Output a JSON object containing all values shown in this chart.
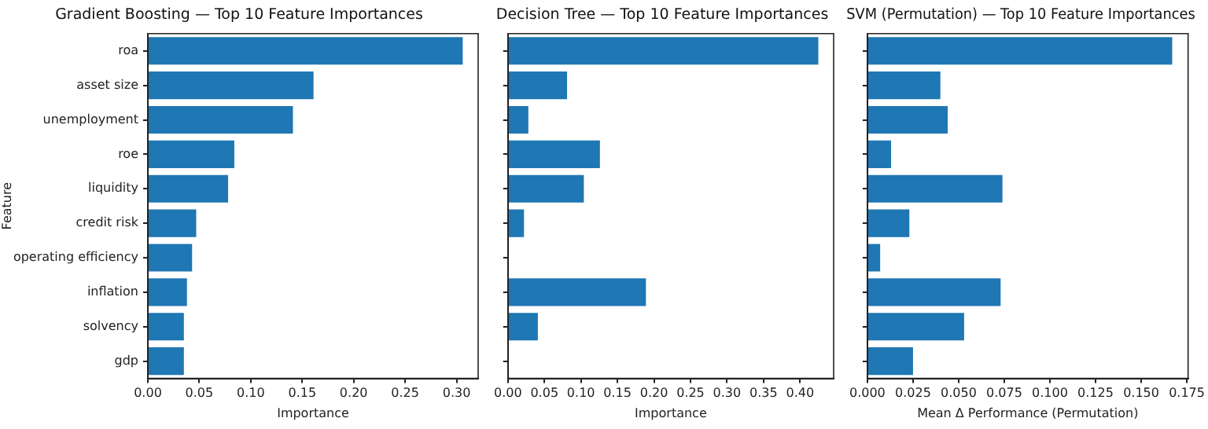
{
  "chart_data": [
    {
      "type": "bar",
      "orientation": "horizontal",
      "title": "Gradient Boosting — Top 10 Feature Importances",
      "xlabel": "Importance",
      "ylabel": "Feature",
      "categories": [
        "roa",
        "asset size",
        "unemployment",
        "roe",
        "liquidity",
        "credit risk",
        "operating efficiency",
        "inflation",
        "solvency",
        "gdp"
      ],
      "values": [
        0.306,
        0.161,
        0.141,
        0.084,
        0.078,
        0.047,
        0.043,
        0.038,
        0.035,
        0.035
      ],
      "color": "#1f77b4",
      "xlim": [
        0,
        0.321
      ],
      "xticks": [
        {
          "value": 0,
          "label": "0.00"
        },
        {
          "value": 0.05,
          "label": "0.05"
        },
        {
          "value": 0.1,
          "label": "0.10"
        },
        {
          "value": 0.15,
          "label": "0.15"
        },
        {
          "value": 0.2,
          "label": "0.20"
        },
        {
          "value": 0.25,
          "label": "0.25"
        },
        {
          "value": 0.3,
          "label": "0.30"
        }
      ],
      "grid": false
    },
    {
      "type": "bar",
      "orientation": "horizontal",
      "title": "Decision Tree — Top 10 Feature Importances",
      "xlabel": "Importance",
      "categories": [
        null,
        null,
        null,
        null,
        null,
        null,
        null,
        null,
        null,
        null
      ],
      "values": [
        0.425,
        0.081,
        0.028,
        0.126,
        0.104,
        0.022,
        0,
        0.189,
        0.041,
        0
      ],
      "color": "#1f77b4",
      "xlim": [
        0,
        0.446
      ],
      "xticks": [
        {
          "value": 0,
          "label": "0.00"
        },
        {
          "value": 0.05,
          "label": "0.05"
        },
        {
          "value": 0.1,
          "label": "0.10"
        },
        {
          "value": 0.15,
          "label": "0.15"
        },
        {
          "value": 0.2,
          "label": "0.20"
        },
        {
          "value": 0.25,
          "label": "0.25"
        },
        {
          "value": 0.3,
          "label": "0.30"
        },
        {
          "value": 0.35,
          "label": "0.35"
        },
        {
          "value": 0.4,
          "label": "0.40"
        }
      ],
      "grid": false,
      "tick_labels": "x"
    },
    {
      "type": "bar",
      "orientation": "horizontal",
      "title": "SVM (Permutation) — Top 10 Feature Importances",
      "xlabel": "Mean Δ Performance (Permutation)",
      "categories": [
        null,
        null,
        null,
        null,
        null,
        null,
        null,
        null,
        null,
        null
      ],
      "values": [
        0.167,
        0.04,
        0.044,
        0.013,
        0.074,
        0.023,
        0.007,
        0.073,
        0.053,
        0.025
      ],
      "color": "#1f77b4",
      "xlim": [
        0,
        0.1757
      ],
      "xticks": [
        {
          "value": 0,
          "label": "0.000"
        },
        {
          "value": 0.025,
          "label": "0.025"
        },
        {
          "value": 0.05,
          "label": "0.050"
        },
        {
          "value": 0.075,
          "label": "0.075"
        },
        {
          "value": 0.1,
          "label": "0.100"
        },
        {
          "value": 0.125,
          "label": "0.125"
        },
        {
          "value": 0.15,
          "label": "0.150"
        },
        {
          "value": 0.175,
          "label": "0.175"
        }
      ],
      "grid": false,
      "tick_labels": "x"
    }
  ]
}
